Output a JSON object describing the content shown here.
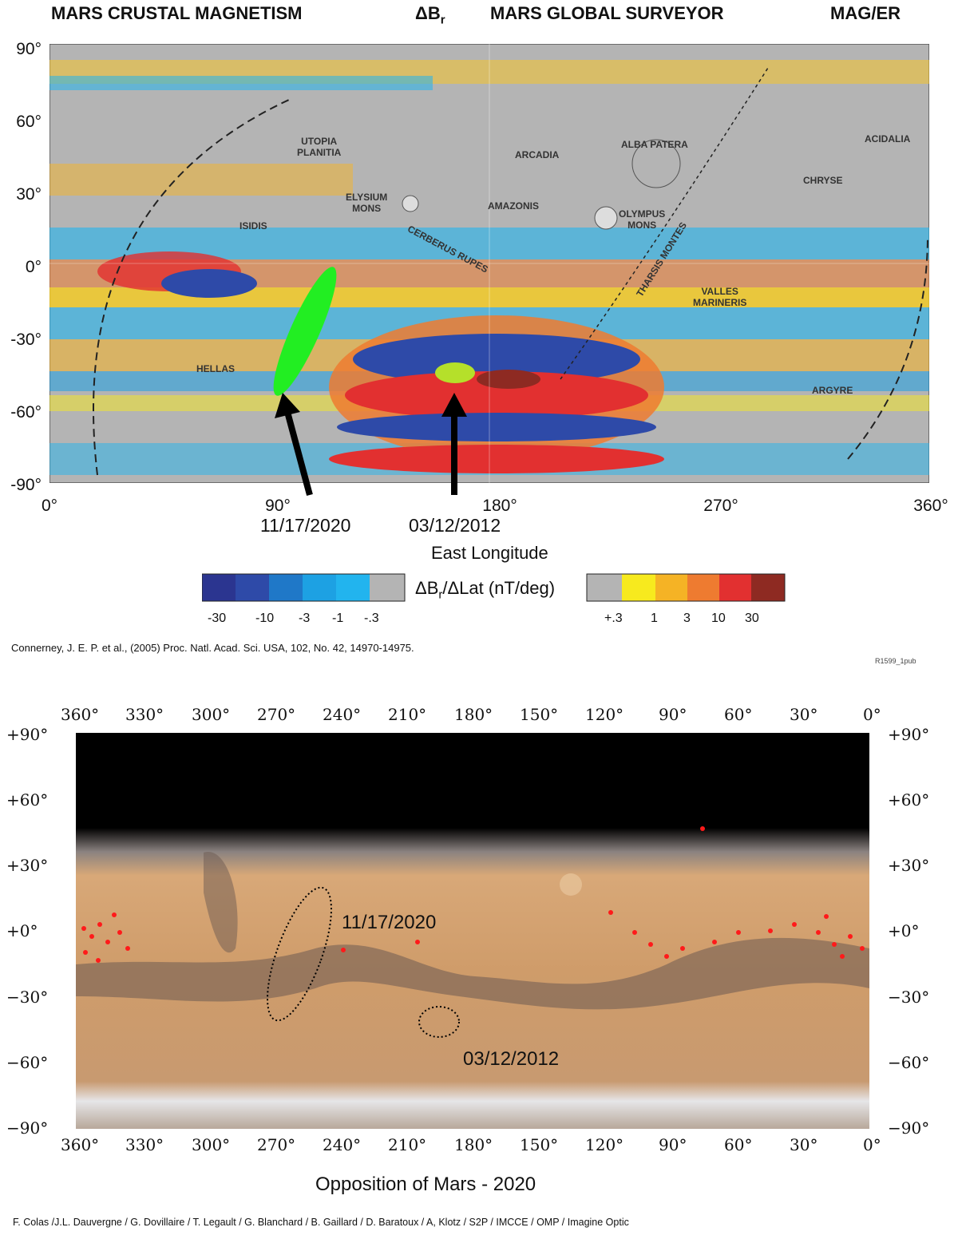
{
  "top_map": {
    "header": {
      "left": "MARS CRUSTAL MAGNETISM",
      "symbol": "ΔB",
      "symbol_sub": "r",
      "center": "MARS GLOBAL SURVEYOR",
      "right": "MAG/ER"
    },
    "lat_ticks": [
      "90°",
      "60°",
      "30°",
      "0°",
      "-30°",
      "-60°",
      "-90°"
    ],
    "lon_ticks": [
      "0°",
      "90°",
      "180°",
      "270°",
      "360°"
    ],
    "xlabel": "East Longitude",
    "regions": {
      "utopia": "UTOPIA\nPLANITIA",
      "arcadia": "ARCADIA",
      "alba": "ALBA PATERA",
      "acidalia": "ACIDALIA",
      "chryse": "CHRYSE",
      "elysium": "ELYSIUM\nMONS",
      "amazonis": "AMAZONIS",
      "olympus": "OLYMPUS\nMONS",
      "isidis": "ISIDIS",
      "cerberus": "CERBERUS RUPES",
      "tharsis": "THARSIS MONTES",
      "valles": "VALLES\nMARINERIS",
      "hellas": "HELLAS",
      "argyre": "ARGYRE"
    },
    "events": [
      {
        "date": "11/17/2020",
        "color": "#22ee22"
      },
      {
        "date": "03/12/2012",
        "color": "#b5e02a"
      }
    ],
    "colorbar": {
      "label": "ΔB",
      "label_sub": "r",
      "label_rest": "/ΔLat (nT/deg)",
      "neg_ticks": [
        "-30",
        "-10",
        "-3",
        "-1",
        "-.3"
      ],
      "pos_ticks": [
        "+.3",
        "1",
        "3",
        "10",
        "30"
      ],
      "neg_colors": [
        "#2b3590",
        "#2e4aa8",
        "#1f78c8",
        "#1da1e3",
        "#22b4ee"
      ],
      "pos_colors": [
        "#f7ea1e",
        "#f5b325",
        "#ee7b30",
        "#e23030",
        "#8e2a22"
      ]
    },
    "citation": "Connerney, J. E. P. et al., (2005) Proc. Natl. Acad. Sci. USA, 102, No. 42, 14970-14975.",
    "ref_code": "R1599_1pub"
  },
  "bottom_map": {
    "lon_ticks": [
      "360°",
      "330°",
      "300°",
      "270°",
      "240°",
      "210°",
      "180°",
      "150°",
      "120°",
      "90°",
      "60°",
      "30°",
      "0°"
    ],
    "lat_ticks": [
      "+90°",
      "+60°",
      "+30°",
      "+0°",
      "−30°",
      "−60°",
      "−90°"
    ],
    "events": [
      "11/17/2020",
      "03/12/2012"
    ],
    "title": "Opposition of Mars - 2020",
    "credits": "F. Colas /J.L. Dauvergne / G. Dovillaire / T. Legault / G. Blanchard / B. Gaillard / D. Baratoux / A, Klotz / S2P / IMCCE / OMP / Imagine Optic"
  },
  "colors": {
    "map_gray": "#b4b4b4",
    "mars_tan": "#cf9c6a",
    "polar_black": "#000000",
    "marker_red": "#ff1a1a"
  }
}
